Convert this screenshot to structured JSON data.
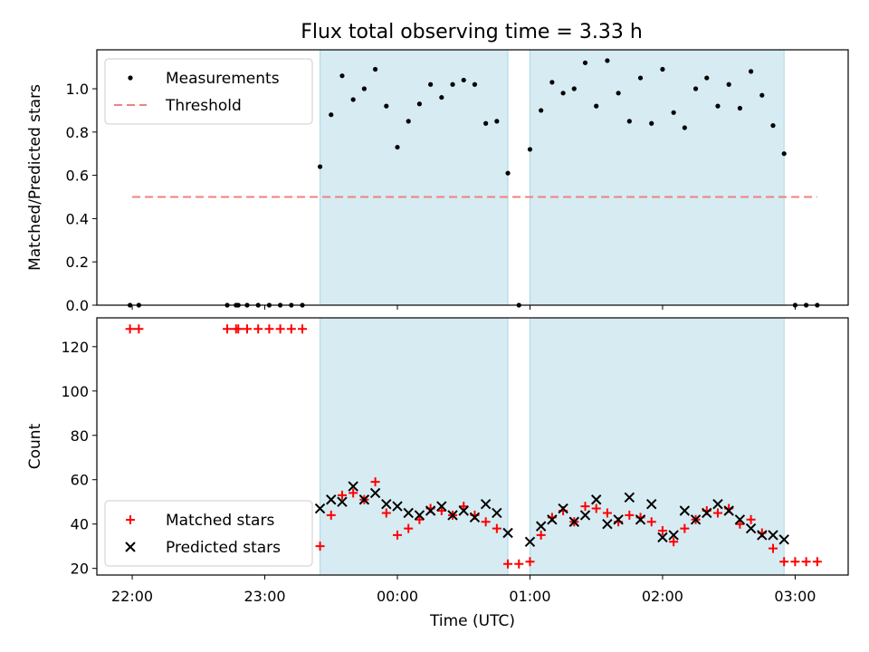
{
  "chart_data": [
    {
      "type": "scatter",
      "title": "Flux total observing time = 3.33 h",
      "xlabel": "",
      "ylabel": "Matched/Predicted stars",
      "xlim": [
        "21:44",
        "03:24"
      ],
      "ylim": [
        0,
        1.18
      ],
      "yticks": [
        "0.0",
        "0.2",
        "0.4",
        "0.6",
        "0.8",
        "1.0"
      ],
      "legend_placement": "upper-left",
      "shaded_intervals": [
        [
          "23:25",
          "00:50"
        ],
        [
          "01:00",
          "02:55"
        ]
      ],
      "threshold": {
        "name": "Threshold",
        "y": 0.5,
        "x_from": "22:00",
        "x_to": "03:10",
        "color": "#f08080"
      },
      "series": [
        {
          "name": "Measurements",
          "color": "#000000",
          "marker": "dot",
          "points": [
            [
              "21:59",
              0
            ],
            [
              "22:03",
              0
            ],
            [
              "22:43",
              0
            ],
            [
              "22:47",
              0
            ],
            [
              "22:48",
              0
            ],
            [
              "22:52",
              0
            ],
            [
              "22:57",
              0
            ],
            [
              "23:02",
              0
            ],
            [
              "23:07",
              0
            ],
            [
              "23:12",
              0
            ],
            [
              "23:17",
              0
            ],
            [
              "23:25",
              0.64
            ],
            [
              "23:30",
              0.88
            ],
            [
              "23:35",
              1.06
            ],
            [
              "23:40",
              0.95
            ],
            [
              "23:45",
              1.0
            ],
            [
              "23:50",
              1.09
            ],
            [
              "23:55",
              0.92
            ],
            [
              "00:00",
              0.73
            ],
            [
              "00:05",
              0.85
            ],
            [
              "00:10",
              0.93
            ],
            [
              "00:15",
              1.02
            ],
            [
              "00:20",
              0.96
            ],
            [
              "00:25",
              1.02
            ],
            [
              "00:30",
              1.04
            ],
            [
              "00:35",
              1.02
            ],
            [
              "00:40",
              0.84
            ],
            [
              "00:45",
              0.85
            ],
            [
              "00:50",
              0.61
            ],
            [
              "00:55",
              0
            ],
            [
              "01:00",
              0.72
            ],
            [
              "01:05",
              0.9
            ],
            [
              "01:10",
              1.03
            ],
            [
              "01:15",
              0.98
            ],
            [
              "01:20",
              1.0
            ],
            [
              "01:25",
              1.12
            ],
            [
              "01:30",
              0.92
            ],
            [
              "01:35",
              1.13
            ],
            [
              "01:40",
              0.98
            ],
            [
              "01:45",
              0.85
            ],
            [
              "01:50",
              1.05
            ],
            [
              "01:55",
              0.84
            ],
            [
              "02:00",
              1.09
            ],
            [
              "02:05",
              0.89
            ],
            [
              "02:10",
              0.82
            ],
            [
              "02:15",
              1.0
            ],
            [
              "02:20",
              1.05
            ],
            [
              "02:25",
              0.92
            ],
            [
              "02:30",
              1.02
            ],
            [
              "02:35",
              0.91
            ],
            [
              "02:40",
              1.08
            ],
            [
              "02:45",
              0.97
            ],
            [
              "02:50",
              0.83
            ],
            [
              "02:55",
              0.7
            ],
            [
              "03:00",
              0
            ],
            [
              "03:05",
              0
            ],
            [
              "03:10",
              0
            ]
          ]
        }
      ]
    },
    {
      "type": "scatter",
      "title": "",
      "xlabel": "Time (UTC)",
      "ylabel": "Count",
      "xlim": [
        "21:44",
        "03:24"
      ],
      "ylim": [
        17,
        133
      ],
      "xticks": [
        "22:00",
        "23:00",
        "00:00",
        "01:00",
        "02:00",
        "03:00"
      ],
      "yticks": [
        "20",
        "40",
        "60",
        "80",
        "100",
        "120"
      ],
      "legend_placement": "lower-left",
      "shaded_intervals": [
        [
          "23:25",
          "00:50"
        ],
        [
          "01:00",
          "02:55"
        ]
      ],
      "series": [
        {
          "name": "Matched stars",
          "color": "#ff0000",
          "marker": "plus",
          "points": [
            [
              "21:59",
              128
            ],
            [
              "22:03",
              128
            ],
            [
              "22:43",
              128
            ],
            [
              "22:47",
              128
            ],
            [
              "22:48",
              128
            ],
            [
              "22:52",
              128
            ],
            [
              "22:57",
              128
            ],
            [
              "23:02",
              128
            ],
            [
              "23:07",
              128
            ],
            [
              "23:12",
              128
            ],
            [
              "23:17",
              128
            ],
            [
              "23:25",
              30
            ],
            [
              "23:30",
              44
            ],
            [
              "23:35",
              53
            ],
            [
              "23:40",
              54
            ],
            [
              "23:45",
              51
            ],
            [
              "23:50",
              59
            ],
            [
              "23:55",
              45
            ],
            [
              "00:00",
              35
            ],
            [
              "00:05",
              38
            ],
            [
              "00:10",
              42
            ],
            [
              "00:15",
              47
            ],
            [
              "00:20",
              46
            ],
            [
              "00:25",
              44
            ],
            [
              "00:30",
              48
            ],
            [
              "00:35",
              44
            ],
            [
              "00:40",
              41
            ],
            [
              "00:45",
              38
            ],
            [
              "00:50",
              22
            ],
            [
              "00:55",
              22
            ],
            [
              "01:00",
              23
            ],
            [
              "01:05",
              35
            ],
            [
              "01:10",
              43
            ],
            [
              "01:15",
              46
            ],
            [
              "01:20",
              41
            ],
            [
              "01:25",
              48
            ],
            [
              "01:30",
              47
            ],
            [
              "01:35",
              45
            ],
            [
              "01:40",
              41
            ],
            [
              "01:45",
              44
            ],
            [
              "01:50",
              43
            ],
            [
              "01:55",
              41
            ],
            [
              "02:00",
              37
            ],
            [
              "02:05",
              32
            ],
            [
              "02:10",
              38
            ],
            [
              "02:15",
              42
            ],
            [
              "02:20",
              46
            ],
            [
              "02:25",
              45
            ],
            [
              "02:30",
              47
            ],
            [
              "02:35",
              40
            ],
            [
              "02:40",
              42
            ],
            [
              "02:45",
              36
            ],
            [
              "02:50",
              29
            ],
            [
              "02:55",
              23
            ],
            [
              "03:00",
              23
            ],
            [
              "03:05",
              23
            ],
            [
              "03:10",
              23
            ]
          ]
        },
        {
          "name": "Predicted stars",
          "color": "#000000",
          "marker": "x",
          "points": [
            [
              "23:25",
              47
            ],
            [
              "23:30",
              51
            ],
            [
              "23:35",
              50
            ],
            [
              "23:40",
              57
            ],
            [
              "23:45",
              51
            ],
            [
              "23:50",
              54
            ],
            [
              "23:55",
              49
            ],
            [
              "00:00",
              48
            ],
            [
              "00:05",
              45
            ],
            [
              "00:10",
              44
            ],
            [
              "00:15",
              46
            ],
            [
              "00:20",
              48
            ],
            [
              "00:25",
              44
            ],
            [
              "00:30",
              46
            ],
            [
              "00:35",
              43
            ],
            [
              "00:40",
              49
            ],
            [
              "00:45",
              45
            ],
            [
              "00:50",
              36
            ],
            [
              "01:00",
              32
            ],
            [
              "01:05",
              39
            ],
            [
              "01:10",
              42
            ],
            [
              "01:15",
              47
            ],
            [
              "01:20",
              41
            ],
            [
              "01:25",
              44
            ],
            [
              "01:30",
              51
            ],
            [
              "01:35",
              40
            ],
            [
              "01:40",
              42
            ],
            [
              "01:45",
              52
            ],
            [
              "01:50",
              42
            ],
            [
              "01:55",
              49
            ],
            [
              "02:00",
              34
            ],
            [
              "02:05",
              35
            ],
            [
              "02:10",
              46
            ],
            [
              "02:15",
              42
            ],
            [
              "02:20",
              45
            ],
            [
              "02:25",
              49
            ],
            [
              "02:30",
              46
            ],
            [
              "02:35",
              42
            ],
            [
              "02:40",
              38
            ],
            [
              "02:45",
              35
            ],
            [
              "02:50",
              35
            ],
            [
              "02:55",
              33
            ]
          ]
        }
      ]
    }
  ]
}
